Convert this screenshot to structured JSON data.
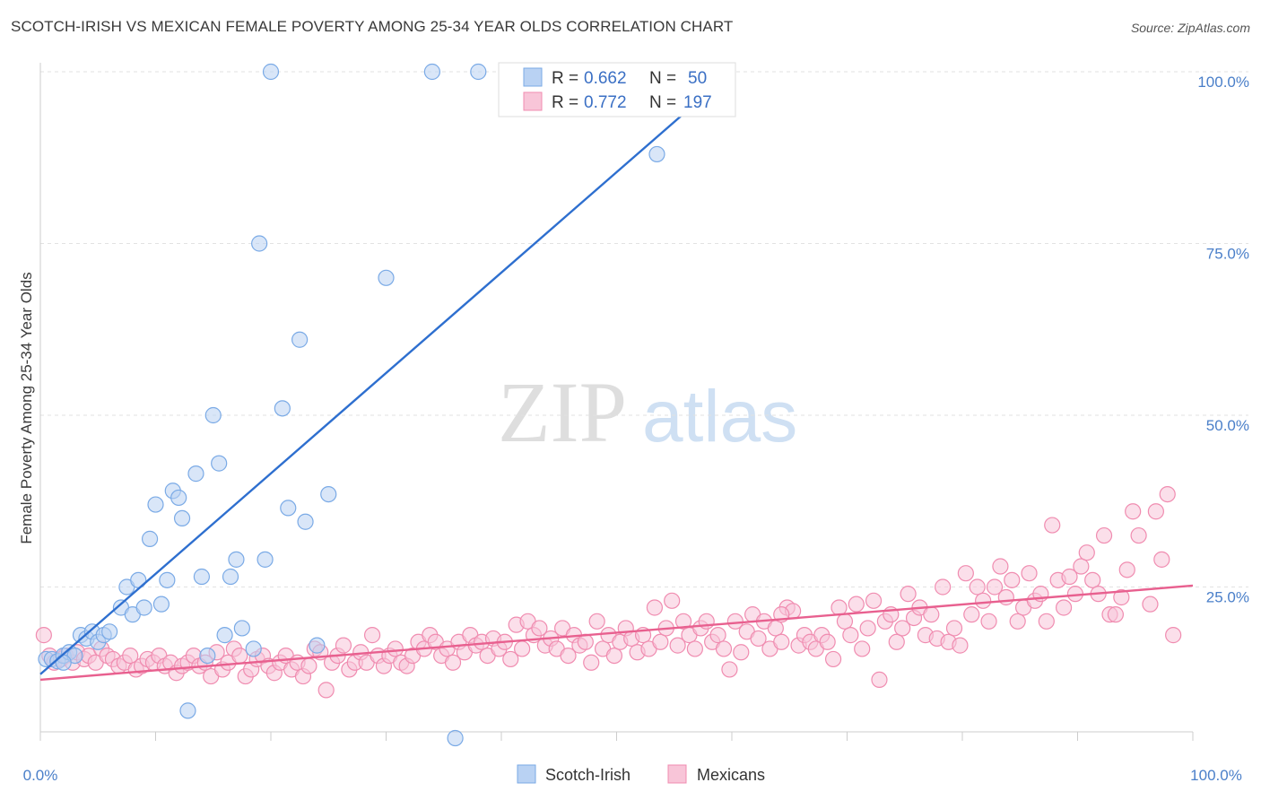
{
  "title": "SCOTCH-IRISH VS MEXICAN FEMALE POVERTY AMONG 25-34 YEAR OLDS CORRELATION CHART",
  "source": "Source: ZipAtlas.com",
  "watermark": {
    "zip": "ZIP",
    "atlas": "atlas"
  },
  "colors": {
    "scotch_irish": "#7aaae6",
    "scotch_irish_fill": "#b9d2f3",
    "scotch_irish_line": "#2e6fcf",
    "mexicans": "#f08cb0",
    "mexicans_fill": "#f8c5d8",
    "mexicans_line": "#e8608f",
    "tick_color": "#4a7fc9"
  },
  "legend": {
    "rows": [
      {
        "r_label": "R = ",
        "r_value": "0.662",
        "n_label": "N = ",
        "n_value": "50"
      },
      {
        "r_label": "R = ",
        "r_value": "0.772",
        "n_label": "N = ",
        "n_value": "197"
      }
    ],
    "series": [
      "Scotch-Irish",
      "Mexicans"
    ]
  },
  "chart_data": {
    "type": "scatter",
    "title": "SCOTCH-IRISH VS MEXICAN FEMALE POVERTY AMONG 25-34 YEAR OLDS CORRELATION CHART",
    "xlabel": "",
    "ylabel": "Female Poverty Among 25-34 Year Olds",
    "xlim": [
      0,
      100
    ],
    "ylim": [
      0,
      105
    ],
    "x_tick_labels": [
      "0.0%",
      "100.0%"
    ],
    "y_ticks": [
      25,
      50,
      75,
      100
    ],
    "y_tick_labels": [
      "25.0%",
      "50.0%",
      "75.0%",
      "100.0%"
    ],
    "grid": true,
    "legend_position": "top-center",
    "series": [
      {
        "name": "Scotch-Irish",
        "r": 0.662,
        "n": 50,
        "trend": {
          "x0": 0,
          "y0": 12.3,
          "x1": 60,
          "y1": 100
        },
        "points": [
          [
            0.5,
            14.5
          ],
          [
            1,
            14.5
          ],
          [
            1.5,
            14.2
          ],
          [
            2,
            15
          ],
          [
            2.5,
            15.5
          ],
          [
            3,
            15
          ],
          [
            3.5,
            18
          ],
          [
            4,
            17.5
          ],
          [
            4.5,
            18.5
          ],
          [
            5,
            17
          ],
          [
            5.5,
            18
          ],
          [
            6,
            18.5
          ],
          [
            7,
            22
          ],
          [
            7.5,
            25
          ],
          [
            8,
            21
          ],
          [
            8.5,
            26
          ],
          [
            9,
            22
          ],
          [
            9.5,
            32
          ],
          [
            10,
            37
          ],
          [
            10.5,
            22.5
          ],
          [
            11,
            26
          ],
          [
            11.5,
            39
          ],
          [
            12,
            38
          ],
          [
            12.3,
            35
          ],
          [
            12.8,
            7
          ],
          [
            13.5,
            41.5
          ],
          [
            14,
            26.5
          ],
          [
            14.5,
            15
          ],
          [
            15,
            50
          ],
          [
            15.5,
            43
          ],
          [
            16,
            18
          ],
          [
            16.5,
            26.5
          ],
          [
            17,
            29
          ],
          [
            17.5,
            19
          ],
          [
            18.5,
            16
          ],
          [
            19,
            75
          ],
          [
            19.5,
            29
          ],
          [
            20,
            100
          ],
          [
            21,
            51
          ],
          [
            21.5,
            36.5
          ],
          [
            22.5,
            61
          ],
          [
            23,
            34.5
          ],
          [
            24,
            16.5
          ],
          [
            25,
            38.5
          ],
          [
            30,
            70
          ],
          [
            34,
            100
          ],
          [
            36,
            3
          ],
          [
            38,
            100
          ],
          [
            53.5,
            88
          ],
          [
            2,
            14
          ]
        ]
      },
      {
        "name": "Mexicans",
        "r": 0.772,
        "n": 197,
        "trend": {
          "x0": 0,
          "y0": 11.5,
          "x1": 100,
          "y1": 25.2
        },
        "points": [
          [
            0.3,
            18
          ],
          [
            0.8,
            15
          ],
          [
            1.2,
            14
          ],
          [
            1.8,
            14.5
          ],
          [
            2.2,
            15
          ],
          [
            2.8,
            14
          ],
          [
            3.2,
            15.5
          ],
          [
            3.8,
            14.5
          ],
          [
            4.2,
            15
          ],
          [
            4.8,
            14
          ],
          [
            5.3,
            16
          ],
          [
            5.8,
            15
          ],
          [
            6.3,
            14.5
          ],
          [
            6.8,
            13.5
          ],
          [
            7.3,
            14
          ],
          [
            7.8,
            15
          ],
          [
            8.3,
            13
          ],
          [
            8.8,
            13.5
          ],
          [
            9.3,
            14.5
          ],
          [
            9.8,
            14
          ],
          [
            10.3,
            15
          ],
          [
            10.8,
            13.5
          ],
          [
            11.3,
            14
          ],
          [
            11.8,
            12.5
          ],
          [
            12.3,
            13.5
          ],
          [
            12.8,
            14
          ],
          [
            13.3,
            15
          ],
          [
            13.8,
            13.5
          ],
          [
            14.3,
            14
          ],
          [
            14.8,
            12
          ],
          [
            15.3,
            15.5
          ],
          [
            15.8,
            13
          ],
          [
            16.3,
            14
          ],
          [
            16.8,
            16
          ],
          [
            17.3,
            15
          ],
          [
            17.8,
            12
          ],
          [
            18.3,
            13
          ],
          [
            18.8,
            14.5
          ],
          [
            19.3,
            15
          ],
          [
            19.8,
            13.5
          ],
          [
            20.3,
            12.5
          ],
          [
            20.8,
            14
          ],
          [
            21.3,
            15
          ],
          [
            21.8,
            13
          ],
          [
            22.3,
            14
          ],
          [
            22.8,
            12
          ],
          [
            23.3,
            13.5
          ],
          [
            23.8,
            16
          ],
          [
            24.3,
            15.5
          ],
          [
            24.8,
            10
          ],
          [
            25.3,
            14
          ],
          [
            25.8,
            15
          ],
          [
            26.3,
            16.5
          ],
          [
            26.8,
            13
          ],
          [
            27.3,
            14
          ],
          [
            27.8,
            15.5
          ],
          [
            28.3,
            14
          ],
          [
            28.8,
            18
          ],
          [
            29.3,
            15
          ],
          [
            29.8,
            13.5
          ],
          [
            30.3,
            15
          ],
          [
            30.8,
            16
          ],
          [
            31.3,
            14
          ],
          [
            31.8,
            13.5
          ],
          [
            32.3,
            15
          ],
          [
            32.8,
            17
          ],
          [
            33.3,
            16
          ],
          [
            33.8,
            18
          ],
          [
            34.3,
            17
          ],
          [
            34.8,
            15
          ],
          [
            35.3,
            16
          ],
          [
            35.8,
            14
          ],
          [
            36.3,
            17
          ],
          [
            36.8,
            15.5
          ],
          [
            37.3,
            18
          ],
          [
            37.8,
            16.5
          ],
          [
            38.3,
            17
          ],
          [
            38.8,
            15
          ],
          [
            39.3,
            17.5
          ],
          [
            39.8,
            16
          ],
          [
            40.3,
            17
          ],
          [
            40.8,
            14.5
          ],
          [
            41.3,
            19.5
          ],
          [
            41.8,
            16
          ],
          [
            42.3,
            20
          ],
          [
            42.8,
            18
          ],
          [
            43.3,
            19
          ],
          [
            43.8,
            16.5
          ],
          [
            44.3,
            17.5
          ],
          [
            44.8,
            16
          ],
          [
            45.3,
            19
          ],
          [
            45.8,
            15
          ],
          [
            46.3,
            18
          ],
          [
            46.8,
            16.5
          ],
          [
            47.3,
            17
          ],
          [
            47.8,
            14
          ],
          [
            48.3,
            20
          ],
          [
            48.8,
            16
          ],
          [
            49.3,
            18
          ],
          [
            49.8,
            15
          ],
          [
            50.3,
            17
          ],
          [
            50.8,
            19
          ],
          [
            51.3,
            17.5
          ],
          [
            51.8,
            15.5
          ],
          [
            52.3,
            18
          ],
          [
            52.8,
            16
          ],
          [
            53.3,
            22
          ],
          [
            53.8,
            17
          ],
          [
            54.3,
            19
          ],
          [
            54.8,
            23
          ],
          [
            55.3,
            16.5
          ],
          [
            55.8,
            20
          ],
          [
            56.3,
            18
          ],
          [
            56.8,
            16
          ],
          [
            57.3,
            19
          ],
          [
            57.8,
            20
          ],
          [
            58.3,
            17
          ],
          [
            58.8,
            18
          ],
          [
            59.3,
            16
          ],
          [
            59.8,
            13
          ],
          [
            60.3,
            20
          ],
          [
            60.8,
            15.5
          ],
          [
            61.3,
            18.5
          ],
          [
            61.8,
            21
          ],
          [
            62.3,
            17.5
          ],
          [
            62.8,
            20
          ],
          [
            63.3,
            16
          ],
          [
            63.8,
            19
          ],
          [
            64.3,
            17
          ],
          [
            64.8,
            22
          ],
          [
            65.3,
            21.5
          ],
          [
            65.8,
            16.5
          ],
          [
            66.3,
            18
          ],
          [
            66.8,
            17
          ],
          [
            67.3,
            16
          ],
          [
            67.8,
            18
          ],
          [
            68.3,
            17
          ],
          [
            68.8,
            14.5
          ],
          [
            69.3,
            22
          ],
          [
            69.8,
            20
          ],
          [
            70.3,
            18
          ],
          [
            70.8,
            22.5
          ],
          [
            71.3,
            16
          ],
          [
            71.8,
            19
          ],
          [
            72.3,
            23
          ],
          [
            72.8,
            11.5
          ],
          [
            73.3,
            20
          ],
          [
            73.8,
            21
          ],
          [
            74.3,
            17
          ],
          [
            74.8,
            19
          ],
          [
            75.3,
            24
          ],
          [
            75.8,
            20.5
          ],
          [
            76.3,
            22
          ],
          [
            76.8,
            18
          ],
          [
            77.3,
            21
          ],
          [
            77.8,
            17.5
          ],
          [
            78.3,
            25
          ],
          [
            78.8,
            17
          ],
          [
            79.3,
            19
          ],
          [
            79.8,
            16.5
          ],
          [
            80.3,
            27
          ],
          [
            80.8,
            21
          ],
          [
            81.3,
            25
          ],
          [
            81.8,
            23
          ],
          [
            82.3,
            20
          ],
          [
            82.8,
            25
          ],
          [
            83.3,
            28
          ],
          [
            83.8,
            23.5
          ],
          [
            84.3,
            26
          ],
          [
            84.8,
            20
          ],
          [
            85.3,
            22
          ],
          [
            85.8,
            27
          ],
          [
            86.3,
            23
          ],
          [
            86.8,
            24
          ],
          [
            87.3,
            20
          ],
          [
            87.8,
            34
          ],
          [
            88.3,
            26
          ],
          [
            88.8,
            22
          ],
          [
            89.3,
            26.5
          ],
          [
            89.8,
            24
          ],
          [
            90.3,
            28
          ],
          [
            90.8,
            30
          ],
          [
            91.3,
            26
          ],
          [
            91.8,
            24
          ],
          [
            92.3,
            32.5
          ],
          [
            92.8,
            21
          ],
          [
            93.3,
            21
          ],
          [
            93.8,
            23.5
          ],
          [
            94.3,
            27.5
          ],
          [
            94.8,
            36
          ],
          [
            95.3,
            32.5
          ],
          [
            96.3,
            22.5
          ],
          [
            96.8,
            36
          ],
          [
            97.3,
            29
          ],
          [
            97.8,
            38.5
          ],
          [
            98.3,
            18
          ],
          [
            64.3,
            21
          ]
        ]
      }
    ]
  }
}
